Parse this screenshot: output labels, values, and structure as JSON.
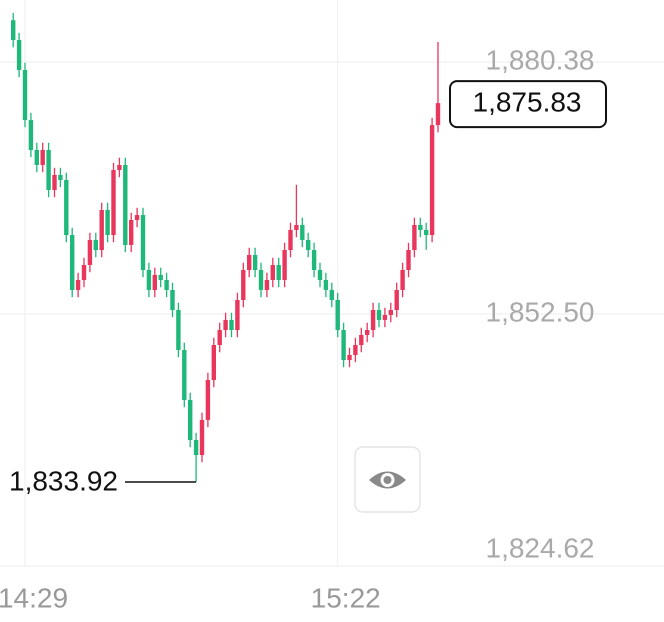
{
  "chart_data": {
    "type": "candlestick",
    "up_color": "#e8365d",
    "down_color": "#1db87a",
    "ylim": [
      1824.62,
      1887.24
    ],
    "yticks": [
      {
        "value": 1824.62,
        "label": "1,824.62"
      },
      {
        "value": 1852.5,
        "label": "1,852.50"
      },
      {
        "value": 1880.38,
        "label": "1,880.38"
      }
    ],
    "grid": true,
    "categories": [
      null,
      null,
      "14:29",
      null,
      null,
      null,
      null,
      null,
      null,
      null,
      null,
      null,
      null,
      null,
      null,
      null,
      null,
      null,
      null,
      null,
      null,
      null,
      null,
      null,
      null,
      null,
      null,
      null,
      null,
      null,
      null,
      null,
      null,
      null,
      null,
      null,
      null,
      null,
      null,
      null,
      null,
      null,
      null,
      null,
      null,
      null,
      null,
      null,
      null,
      null,
      null,
      null,
      null,
      null,
      null,
      "15:22",
      null,
      null,
      null,
      null,
      null,
      null,
      null,
      null,
      null,
      null,
      null,
      null,
      null,
      null,
      null,
      null,
      null
    ],
    "open": [
      1885.0,
      1882.81,
      1879.5,
      1873.96,
      1870.65,
      1868.99,
      1870.65,
      1866.22,
      1867.88,
      1867.33,
      1861.24,
      1855.16,
      1856.26,
      1857.92,
      1860.69,
      1859.58,
      1864.01,
      1861.24,
      1868.43,
      1868.99,
      1860.14,
      1862.9,
      1863.45,
      1857.37,
      1855.16,
      1856.82,
      1856.26,
      1855.16,
      1852.94,
      1848.52,
      1842.99,
      1838.56,
      1836.9,
      1840.78,
      1845.2,
      1849.07,
      1850.73,
      1851.84,
      1850.73,
      1854.05,
      1857.37,
      1859.03,
      1857.37,
      1855.16,
      1856.26,
      1857.92,
      1856.26,
      1859.58,
      1861.8,
      1862.35,
      1860.69,
      1859.58,
      1857.37,
      1856.26,
      1855.16,
      1854.05,
      1850.73,
      1847.41,
      1847.97,
      1849.07,
      1850.18,
      1850.73,
      1852.94,
      1851.84,
      1852.39,
      1852.94,
      1855.16,
      1857.37,
      1859.58,
      1862.35,
      1861.8,
      1861.24,
      1873.4
    ],
    "high": [
      1885.8,
      1883.61,
      1880.3,
      1874.76,
      1871.45,
      1871.45,
      1871.45,
      1868.68,
      1868.68,
      1868.13,
      1862.04,
      1857.06,
      1858.72,
      1861.49,
      1861.49,
      1864.81,
      1864.81,
      1869.23,
      1869.79,
      1869.79,
      1863.7,
      1864.25,
      1864.25,
      1858.17,
      1857.62,
      1857.62,
      1857.06,
      1855.96,
      1853.74,
      1849.32,
      1843.79,
      1839.36,
      1841.58,
      1846.0,
      1849.87,
      1851.53,
      1852.64,
      1852.64,
      1854.85,
      1858.17,
      1859.83,
      1859.83,
      1858.17,
      1857.06,
      1858.72,
      1858.72,
      1860.38,
      1862.6,
      1866.8,
      1863.15,
      1861.49,
      1860.38,
      1858.17,
      1857.06,
      1855.96,
      1854.85,
      1851.53,
      1848.77,
      1849.87,
      1850.98,
      1851.53,
      1853.74,
      1853.74,
      1853.19,
      1853.74,
      1855.96,
      1858.17,
      1860.38,
      1863.15,
      1863.15,
      1862.6,
      1874.2,
      1882.6
    ],
    "low": [
      1882.01,
      1878.7,
      1873.16,
      1869.85,
      1868.19,
      1868.19,
      1865.42,
      1865.42,
      1866.53,
      1860.44,
      1854.36,
      1854.36,
      1855.46,
      1857.12,
      1858.78,
      1858.78,
      1860.44,
      1860.44,
      1867.63,
      1859.34,
      1859.34,
      1862.1,
      1856.57,
      1854.36,
      1854.36,
      1855.46,
      1854.36,
      1852.14,
      1847.72,
      1842.19,
      1837.76,
      1833.92,
      1836.1,
      1839.98,
      1844.4,
      1848.27,
      1849.93,
      1849.93,
      1849.93,
      1853.25,
      1856.57,
      1856.57,
      1854.36,
      1854.36,
      1855.46,
      1855.46,
      1855.46,
      1858.78,
      1861.0,
      1859.89,
      1858.78,
      1856.57,
      1855.46,
      1854.36,
      1853.25,
      1849.93,
      1846.61,
      1846.61,
      1847.17,
      1848.27,
      1849.38,
      1849.93,
      1851.04,
      1851.04,
      1851.59,
      1852.14,
      1854.36,
      1856.57,
      1858.78,
      1861.0,
      1859.6,
      1860.44,
      1872.6
    ],
    "close": [
      1882.81,
      1879.5,
      1873.96,
      1870.65,
      1868.99,
      1870.65,
      1866.22,
      1867.88,
      1867.33,
      1861.24,
      1855.16,
      1856.26,
      1857.92,
      1860.69,
      1859.58,
      1864.01,
      1861.24,
      1868.43,
      1868.99,
      1860.14,
      1862.9,
      1863.45,
      1857.37,
      1855.16,
      1856.82,
      1856.26,
      1855.16,
      1852.94,
      1848.52,
      1842.99,
      1838.56,
      1836.9,
      1840.78,
      1845.2,
      1849.07,
      1850.73,
      1851.84,
      1850.73,
      1854.05,
      1857.37,
      1859.03,
      1857.37,
      1855.16,
      1856.26,
      1857.92,
      1856.26,
      1859.58,
      1861.8,
      1862.35,
      1860.69,
      1859.58,
      1857.37,
      1856.26,
      1855.16,
      1854.05,
      1850.73,
      1847.41,
      1847.97,
      1849.07,
      1850.18,
      1850.73,
      1852.94,
      1851.84,
      1852.39,
      1852.94,
      1855.16,
      1857.37,
      1859.58,
      1862.35,
      1861.8,
      1861.24,
      1873.4,
      1875.83
    ],
    "annotations": [
      {
        "text": "1,875.83",
        "value": 1875.83
      },
      {
        "text": "1,833.92",
        "value": 1833.92
      }
    ]
  }
}
